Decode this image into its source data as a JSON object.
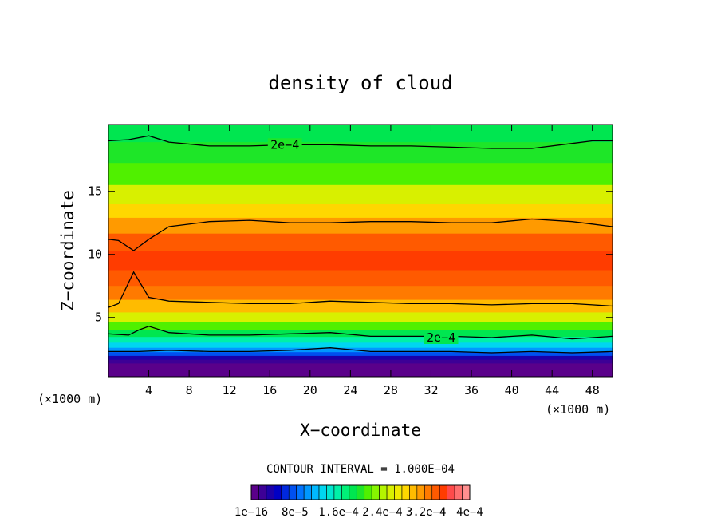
{
  "chart_data": {
    "type": "heatmap",
    "title": "density of cloud",
    "xlabel": "X−coordinate",
    "ylabel": "Z−coordinate",
    "x_unit": "(×1000 m)",
    "y_unit": "(×1000 m)",
    "xlim": [
      0,
      50
    ],
    "ylim": [
      0.3,
      20.3
    ],
    "x_ticks": [
      4,
      8,
      12,
      16,
      20,
      24,
      28,
      32,
      36,
      40,
      44,
      48
    ],
    "y_ticks": [
      5,
      10,
      15
    ],
    "contour_interval_text": "CONTOUR INTERVAL = 1.000E−04",
    "contour_labels": [
      {
        "text": "2e−4",
        "x": 17.5,
        "z": 18.7
      },
      {
        "text": "2e−4",
        "x": 33,
        "z": 3.4
      }
    ],
    "contours": [
      {
        "level": "2e-4",
        "x": [
          0,
          2,
          4,
          6,
          10,
          14,
          18,
          22,
          26,
          30,
          34,
          38,
          42,
          46,
          48,
          50
        ],
        "z": [
          19.0,
          19.1,
          19.4,
          18.9,
          18.6,
          18.6,
          18.7,
          18.7,
          18.6,
          18.6,
          18.5,
          18.4,
          18.4,
          18.8,
          19.0,
          19.0
        ]
      },
      {
        "level": "3e-4",
        "x": [
          0,
          1,
          2.5,
          4,
          6,
          10,
          14,
          18,
          22,
          26,
          30,
          34,
          38,
          42,
          46,
          48,
          50
        ],
        "z": [
          11.2,
          11.1,
          10.3,
          11.2,
          12.2,
          12.6,
          12.7,
          12.5,
          12.5,
          12.6,
          12.6,
          12.5,
          12.5,
          12.8,
          12.6,
          12.4,
          12.2
        ]
      },
      {
        "level": "3e-4",
        "x": [
          0,
          1,
          2.5,
          4,
          6,
          10,
          14,
          18,
          22,
          26,
          30,
          34,
          38,
          42,
          46,
          48,
          50
        ],
        "z": [
          5.8,
          6.1,
          8.6,
          6.6,
          6.3,
          6.2,
          6.1,
          6.1,
          6.3,
          6.2,
          6.1,
          6.1,
          6.0,
          6.1,
          6.1,
          6.0,
          5.9
        ]
      },
      {
        "level": "2e-4",
        "x": [
          0,
          2,
          3,
          4,
          6,
          10,
          14,
          18,
          22,
          26,
          30,
          34,
          38,
          42,
          46,
          50
        ],
        "z": [
          3.7,
          3.6,
          4.0,
          4.3,
          3.8,
          3.6,
          3.6,
          3.7,
          3.8,
          3.5,
          3.5,
          3.5,
          3.4,
          3.6,
          3.3,
          3.5
        ]
      },
      {
        "level": "1e-4",
        "x": [
          0,
          3,
          6,
          10,
          14,
          18,
          22,
          26,
          30,
          34,
          38,
          42,
          46,
          50
        ],
        "z": [
          2.3,
          2.3,
          2.4,
          2.3,
          2.3,
          2.4,
          2.6,
          2.3,
          2.3,
          2.3,
          2.2,
          2.3,
          2.2,
          2.3
        ]
      }
    ],
    "field_z_profile": [
      {
        "z": 19.8,
        "v": 0.00018
      },
      {
        "z": 18.0,
        "v": 0.0002
      },
      {
        "z": 16.5,
        "v": 0.00022
      },
      {
        "z": 14.5,
        "v": 0.00025
      },
      {
        "z": 13.5,
        "v": 0.00028
      },
      {
        "z": 12.3,
        "v": 0.00031
      },
      {
        "z": 11.0,
        "v": 0.00034
      },
      {
        "z": 9.5,
        "v": 0.00035
      },
      {
        "z": 8.0,
        "v": 0.00034
      },
      {
        "z": 7.0,
        "v": 0.00032
      },
      {
        "z": 5.8,
        "v": 0.00029
      },
      {
        "z": 5.0,
        "v": 0.00025
      },
      {
        "z": 4.3,
        "v": 0.00022
      },
      {
        "z": 3.7,
        "v": 0.00019
      },
      {
        "z": 3.2,
        "v": 0.00016
      },
      {
        "z": 2.8,
        "v": 0.00013
      },
      {
        "z": 2.4,
        "v": 0.0001
      },
      {
        "z": 2.1,
        "v": 7e-05
      },
      {
        "z": 1.8,
        "v": 4e-05
      },
      {
        "z": 1.5,
        "v": 2e-05
      },
      {
        "z": 1.2,
        "v": 5e-06
      }
    ],
    "colorbar": {
      "colors": [
        "#5a008a",
        "#3d0096",
        "#1c00a8",
        "#0000c4",
        "#0028de",
        "#0050f0",
        "#0074ff",
        "#0098ff",
        "#00b8ff",
        "#00d6f0",
        "#00e6d0",
        "#00f0a8",
        "#00f078",
        "#00e650",
        "#1ee628",
        "#50f000",
        "#86f500",
        "#b4f500",
        "#d8f000",
        "#f0ea00",
        "#ffd700",
        "#ffbb00",
        "#ff9a00",
        "#ff7a00",
        "#ff5a00",
        "#ff3c00",
        "#ff4a4a",
        "#ff6e6e",
        "#ff9090"
      ],
      "min": 1e-16,
      "max": 0.0004,
      "tick_labels": [
        "1e−16",
        "8e−5",
        "1.6e−4",
        "2.4e−4",
        "3.2e−4",
        "4e−4"
      ]
    }
  }
}
